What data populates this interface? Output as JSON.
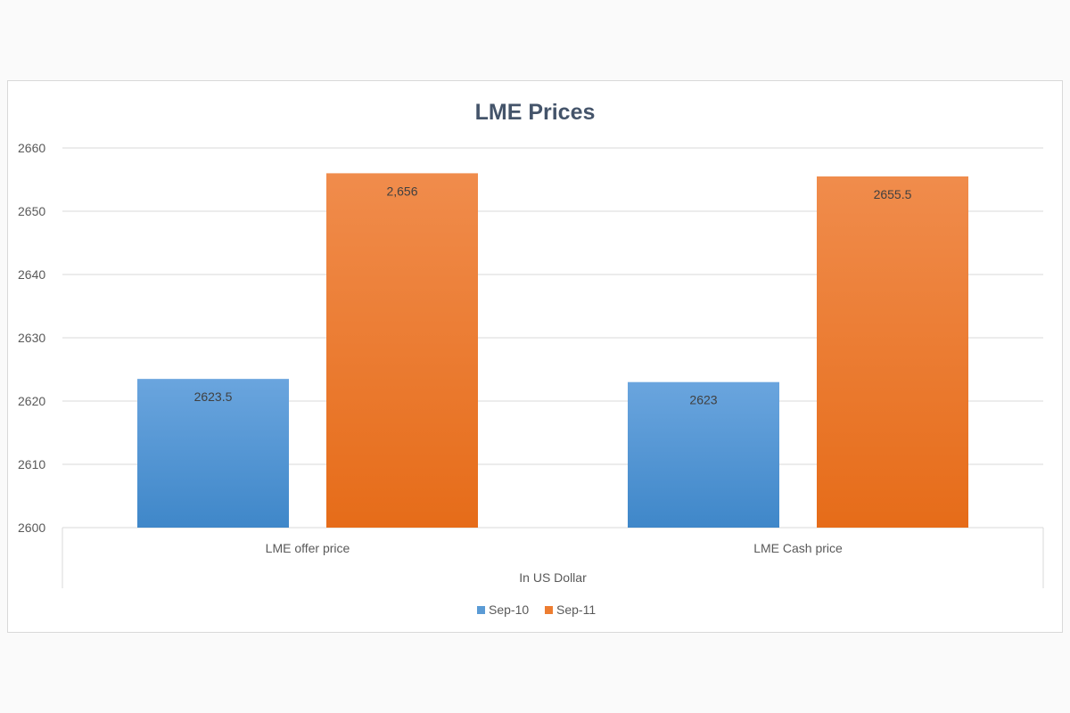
{
  "chart_data": {
    "type": "bar",
    "title": "LME Prices",
    "xlabel": "In US Dollar",
    "ylabel": "",
    "categories": [
      "LME offer price",
      "LME Cash price"
    ],
    "series": [
      {
        "name": "Sep-10",
        "values": [
          2623.5,
          2623
        ],
        "labels": [
          "2623.5",
          "2623"
        ],
        "color": "#5b9bd5",
        "color_light": "#6aa5de",
        "color_dark": "#3f87c9"
      },
      {
        "name": "Sep-11",
        "values": [
          2656,
          2655.5
        ],
        "labels": [
          "2,656",
          "2655.5"
        ],
        "color": "#ed7d31",
        "color_light": "#f08c4c",
        "color_dark": "#e66c19"
      }
    ],
    "ylim": [
      2600,
      2660
    ],
    "yticks": [
      "2600",
      "2610",
      "2620",
      "2630",
      "2640",
      "2650",
      "2660"
    ],
    "grid": true,
    "legend_position": "bottom"
  }
}
